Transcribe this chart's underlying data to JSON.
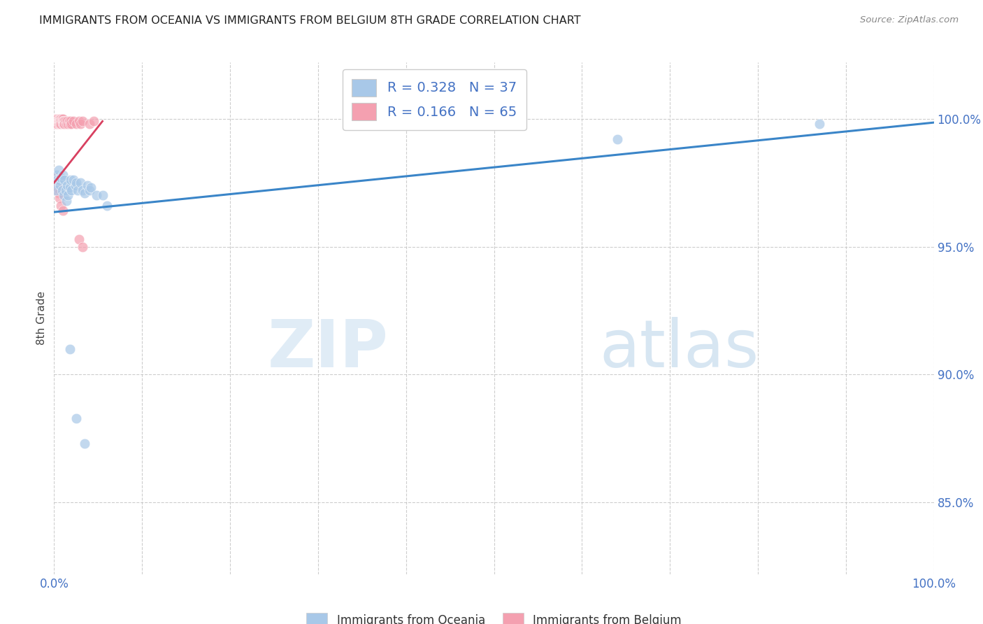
{
  "title": "IMMIGRANTS FROM OCEANIA VS IMMIGRANTS FROM BELGIUM 8TH GRADE CORRELATION CHART",
  "source": "Source: ZipAtlas.com",
  "ylabel": "8th Grade",
  "yticks": [
    "85.0%",
    "90.0%",
    "95.0%",
    "100.0%"
  ],
  "ytick_vals": [
    0.85,
    0.9,
    0.95,
    1.0
  ],
  "xrange": [
    0.0,
    1.0
  ],
  "yrange": [
    0.822,
    1.022
  ],
  "legend_blue_r": "R = 0.328",
  "legend_blue_n": "N = 37",
  "legend_pink_r": "R = 0.166",
  "legend_pink_n": "N = 65",
  "blue_scatter_x": [
    0.001,
    0.002,
    0.003,
    0.004,
    0.005,
    0.006,
    0.007,
    0.008,
    0.009,
    0.01,
    0.011,
    0.012,
    0.013,
    0.014,
    0.015,
    0.016,
    0.018,
    0.019,
    0.02,
    0.022,
    0.024,
    0.025,
    0.027,
    0.03,
    0.032,
    0.035,
    0.038,
    0.04,
    0.042,
    0.048,
    0.055,
    0.06,
    0.64,
    0.87,
    0.018,
    0.025,
    0.035
  ],
  "blue_scatter_y": [
    0.975,
    0.972,
    0.978,
    0.976,
    0.98,
    0.976,
    0.974,
    0.977,
    0.972,
    0.978,
    0.97,
    0.976,
    0.972,
    0.968,
    0.974,
    0.97,
    0.973,
    0.976,
    0.972,
    0.976,
    0.974,
    0.975,
    0.972,
    0.975,
    0.972,
    0.971,
    0.974,
    0.972,
    0.973,
    0.97,
    0.97,
    0.966,
    0.992,
    0.998,
    0.91,
    0.883,
    0.873
  ],
  "pink_scatter_x": [
    0.001,
    0.001,
    0.001,
    0.001,
    0.001,
    0.002,
    0.002,
    0.002,
    0.002,
    0.002,
    0.002,
    0.003,
    0.003,
    0.003,
    0.003,
    0.004,
    0.004,
    0.004,
    0.004,
    0.005,
    0.005,
    0.005,
    0.005,
    0.006,
    0.006,
    0.006,
    0.007,
    0.007,
    0.007,
    0.008,
    0.008,
    0.008,
    0.009,
    0.009,
    0.01,
    0.01,
    0.01,
    0.011,
    0.011,
    0.012,
    0.012,
    0.013,
    0.014,
    0.015,
    0.016,
    0.017,
    0.018,
    0.019,
    0.02,
    0.022,
    0.025,
    0.028,
    0.03,
    0.032,
    0.04,
    0.045,
    0.002,
    0.003,
    0.004,
    0.005,
    0.006,
    0.008,
    0.01,
    0.028,
    0.032
  ],
  "pink_scatter_y": [
    1.0,
    1.0,
    0.999,
    0.999,
    0.998,
    1.0,
    1.0,
    0.999,
    0.999,
    0.998,
    0.998,
    1.0,
    0.999,
    0.999,
    0.998,
    1.0,
    0.999,
    0.999,
    0.998,
    1.0,
    0.999,
    0.999,
    0.998,
    1.0,
    0.999,
    0.998,
    1.0,
    0.999,
    0.998,
    1.0,
    0.999,
    0.998,
    1.0,
    0.999,
    1.0,
    0.999,
    0.998,
    0.999,
    0.998,
    0.999,
    0.998,
    0.999,
    0.998,
    0.999,
    0.998,
    0.999,
    0.998,
    0.999,
    0.998,
    0.999,
    0.998,
    0.999,
    0.998,
    0.999,
    0.998,
    0.999,
    0.977,
    0.975,
    0.973,
    0.971,
    0.969,
    0.966,
    0.964,
    0.953,
    0.95
  ],
  "blue_line_x": [
    0.0,
    1.0
  ],
  "blue_line_y": [
    0.9635,
    0.9985
  ],
  "pink_line_x": [
    0.0,
    0.055
  ],
  "pink_line_y": [
    0.975,
    0.999
  ],
  "blue_color": "#a8c8e8",
  "pink_color": "#f4a0b0",
  "blue_line_color": "#3a85c8",
  "pink_line_color": "#d84060",
  "watermark_zip": "ZIP",
  "watermark_atlas": "atlas",
  "grid_color": "#c8c8c8",
  "title_color": "#333333",
  "axis_color": "#4472c4",
  "legend_r_color": "#4472c4",
  "legend_n_color": "#4472c4"
}
